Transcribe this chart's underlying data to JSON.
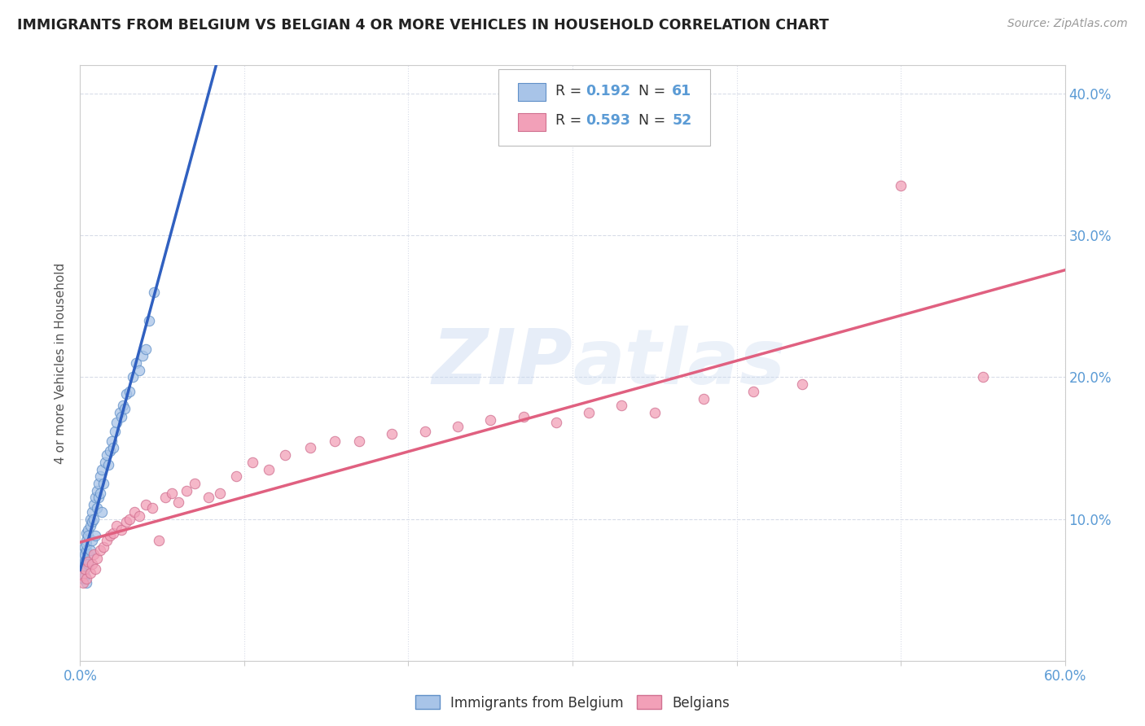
{
  "title": "IMMIGRANTS FROM BELGIUM VS BELGIAN 4 OR MORE VEHICLES IN HOUSEHOLD CORRELATION CHART",
  "source": "Source: ZipAtlas.com",
  "ylabel": "4 or more Vehicles in Household",
  "xlim": [
    0.0,
    0.6
  ],
  "ylim": [
    0.0,
    0.42
  ],
  "R1": 0.192,
  "N1": 61,
  "R2": 0.593,
  "N2": 52,
  "color_blue": "#a8c4e8",
  "color_pink": "#f2a0b8",
  "color_blue_line": "#3060c0",
  "color_pink_line": "#e06080",
  "color_dashed": "#90b8e8",
  "legend_label1": "Immigrants from Belgium",
  "legend_label2": "Belgians",
  "watermark": "ZIPatlas",
  "blue_x": [
    0.001,
    0.001,
    0.001,
    0.002,
    0.002,
    0.002,
    0.002,
    0.003,
    0.003,
    0.003,
    0.003,
    0.003,
    0.004,
    0.004,
    0.004,
    0.004,
    0.004,
    0.005,
    0.005,
    0.005,
    0.005,
    0.006,
    0.006,
    0.006,
    0.007,
    0.007,
    0.007,
    0.008,
    0.008,
    0.009,
    0.009,
    0.01,
    0.01,
    0.011,
    0.011,
    0.012,
    0.012,
    0.013,
    0.013,
    0.014,
    0.015,
    0.016,
    0.017,
    0.018,
    0.019,
    0.02,
    0.021,
    0.022,
    0.024,
    0.025,
    0.026,
    0.027,
    0.028,
    0.03,
    0.032,
    0.034,
    0.036,
    0.038,
    0.04,
    0.042,
    0.045
  ],
  "blue_y": [
    0.07,
    0.075,
    0.065,
    0.068,
    0.072,
    0.062,
    0.058,
    0.08,
    0.065,
    0.075,
    0.07,
    0.06,
    0.085,
    0.078,
    0.09,
    0.082,
    0.055,
    0.092,
    0.088,
    0.075,
    0.068,
    0.095,
    0.1,
    0.078,
    0.105,
    0.098,
    0.085,
    0.11,
    0.1,
    0.115,
    0.088,
    0.12,
    0.108,
    0.125,
    0.115,
    0.13,
    0.118,
    0.105,
    0.135,
    0.125,
    0.14,
    0.145,
    0.138,
    0.148,
    0.155,
    0.15,
    0.162,
    0.168,
    0.175,
    0.172,
    0.18,
    0.178,
    0.188,
    0.19,
    0.2,
    0.21,
    0.205,
    0.215,
    0.22,
    0.24,
    0.26
  ],
  "pink_x": [
    0.001,
    0.002,
    0.003,
    0.004,
    0.005,
    0.006,
    0.007,
    0.008,
    0.009,
    0.01,
    0.012,
    0.014,
    0.016,
    0.018,
    0.02,
    0.022,
    0.025,
    0.028,
    0.03,
    0.033,
    0.036,
    0.04,
    0.044,
    0.048,
    0.052,
    0.056,
    0.06,
    0.065,
    0.07,
    0.078,
    0.085,
    0.095,
    0.105,
    0.115,
    0.125,
    0.14,
    0.155,
    0.17,
    0.19,
    0.21,
    0.23,
    0.25,
    0.27,
    0.29,
    0.31,
    0.33,
    0.35,
    0.38,
    0.41,
    0.44,
    0.5,
    0.55
  ],
  "pink_y": [
    0.06,
    0.055,
    0.065,
    0.058,
    0.07,
    0.062,
    0.068,
    0.075,
    0.065,
    0.072,
    0.078,
    0.08,
    0.085,
    0.088,
    0.09,
    0.095,
    0.092,
    0.098,
    0.1,
    0.105,
    0.102,
    0.11,
    0.108,
    0.085,
    0.115,
    0.118,
    0.112,
    0.12,
    0.125,
    0.115,
    0.118,
    0.13,
    0.14,
    0.135,
    0.145,
    0.15,
    0.155,
    0.155,
    0.16,
    0.162,
    0.165,
    0.17,
    0.172,
    0.168,
    0.175,
    0.18,
    0.175,
    0.185,
    0.19,
    0.195,
    0.335,
    0.2
  ]
}
